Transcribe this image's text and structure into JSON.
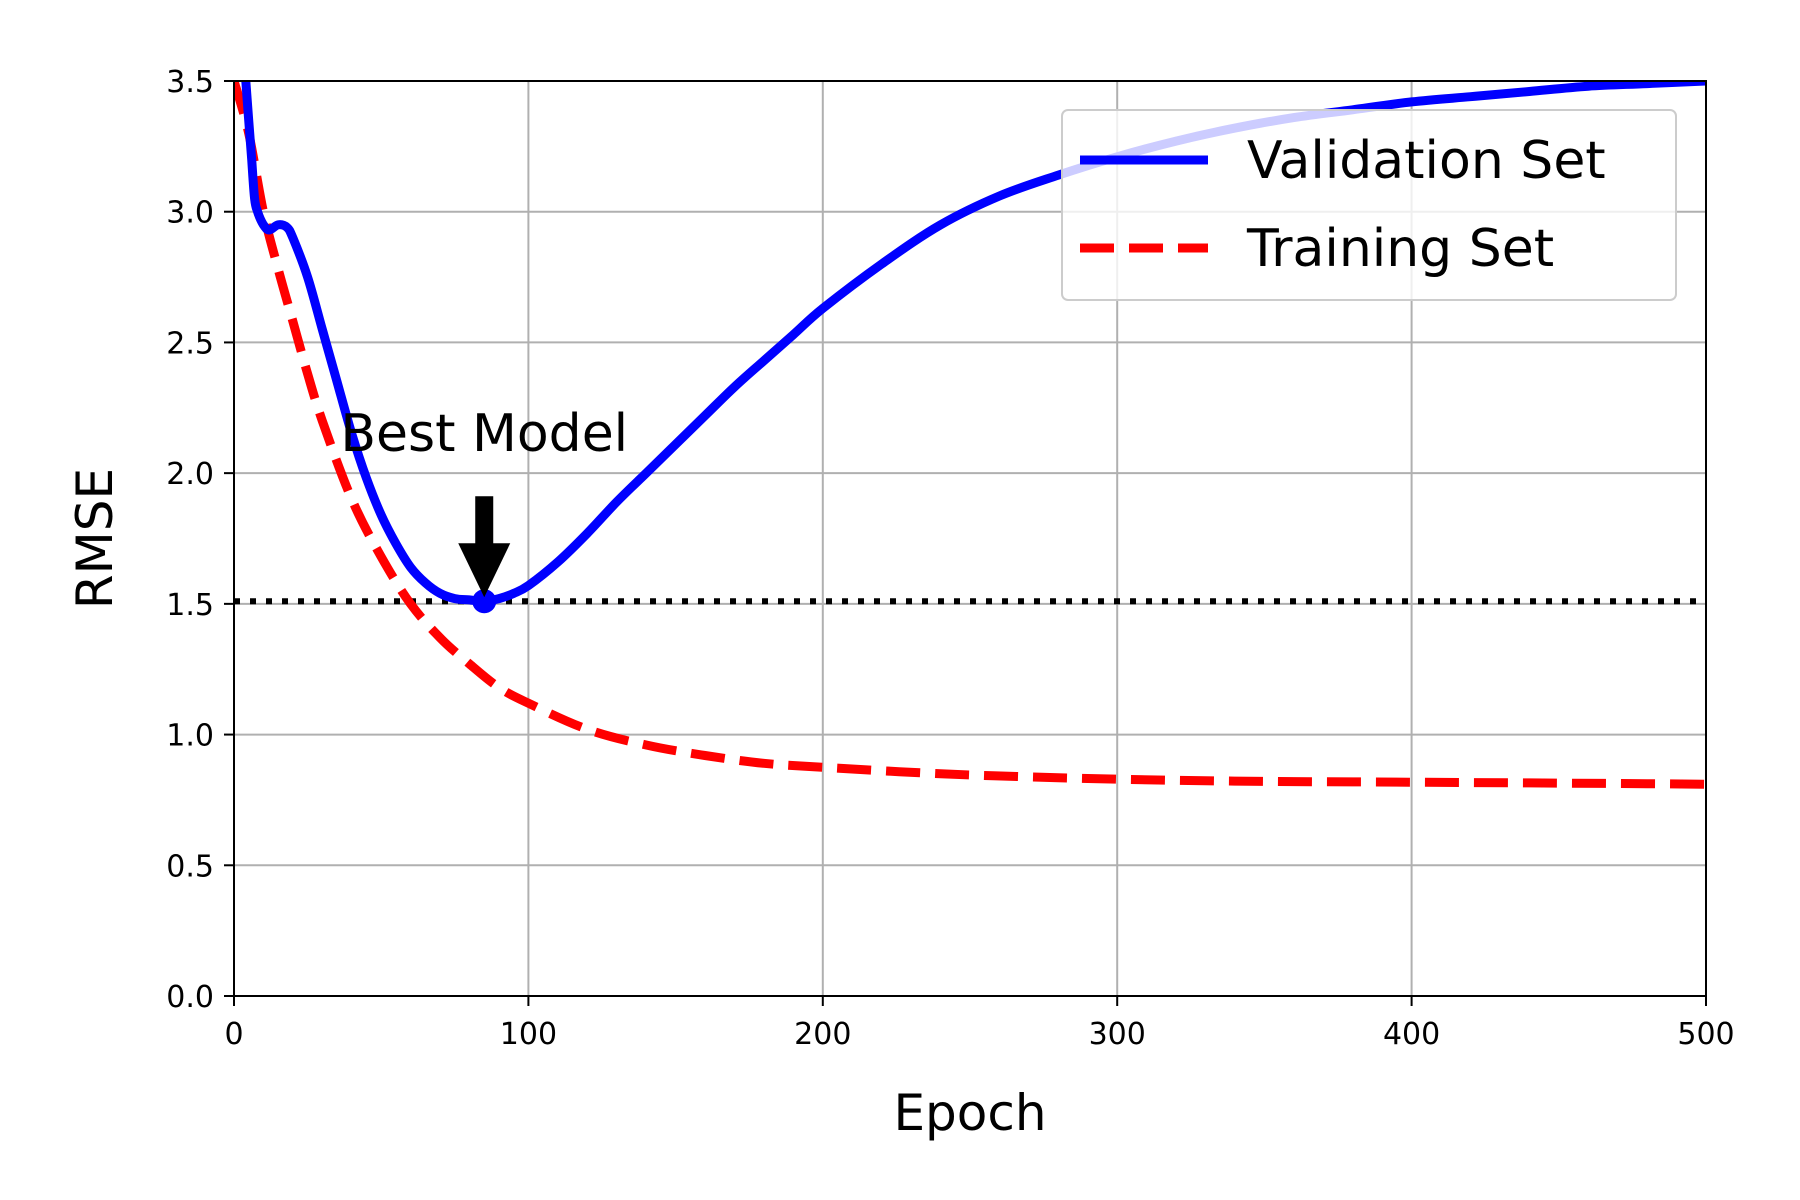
{
  "chart_data": {
    "type": "line",
    "xlabel": "Epoch",
    "ylabel": "RMSE",
    "xlim": [
      0,
      500
    ],
    "ylim": [
      0,
      3.5
    ],
    "xticks": [
      "0",
      "100",
      "200",
      "300",
      "400",
      "500"
    ],
    "yticks": [
      "0.0",
      "0.5",
      "1.0",
      "1.5",
      "2.0",
      "2.5",
      "3.0",
      "3.5"
    ],
    "grid": true,
    "legend_position": "top-right",
    "series": [
      {
        "name": "Validation Set",
        "style": "solid",
        "color": "#0000ff",
        "x": [
          4,
          5,
          6,
          7,
          8,
          10,
          12,
          15,
          18,
          20,
          25,
          30,
          35,
          40,
          45,
          50,
          55,
          60,
          65,
          70,
          75,
          80,
          85,
          90,
          95,
          100,
          110,
          120,
          130,
          140,
          150,
          160,
          170,
          180,
          190,
          200,
          220,
          240,
          260,
          280,
          300,
          320,
          340,
          360,
          380,
          400,
          420,
          440,
          460,
          480,
          500
        ],
        "y": [
          3.5,
          3.35,
          3.2,
          3.05,
          3.0,
          2.95,
          2.93,
          2.95,
          2.94,
          2.9,
          2.75,
          2.55,
          2.35,
          2.15,
          1.98,
          1.84,
          1.73,
          1.64,
          1.58,
          1.54,
          1.52,
          1.515,
          1.51,
          1.52,
          1.54,
          1.57,
          1.66,
          1.77,
          1.89,
          2.0,
          2.11,
          2.22,
          2.33,
          2.43,
          2.53,
          2.63,
          2.8,
          2.95,
          3.06,
          3.14,
          3.21,
          3.27,
          3.32,
          3.36,
          3.39,
          3.42,
          3.44,
          3.46,
          3.48,
          3.49,
          3.5
        ]
      },
      {
        "name": "Training Set",
        "style": "dashed",
        "color": "#ff0000",
        "x": [
          0,
          5,
          10,
          15,
          20,
          25,
          30,
          40,
          50,
          60,
          70,
          80,
          90,
          100,
          120,
          140,
          160,
          180,
          200,
          240,
          280,
          320,
          360,
          400,
          440,
          480,
          500
        ],
        "y": [
          3.5,
          3.3,
          3.0,
          2.78,
          2.58,
          2.38,
          2.2,
          1.9,
          1.68,
          1.5,
          1.37,
          1.27,
          1.18,
          1.12,
          1.02,
          0.96,
          0.92,
          0.89,
          0.875,
          0.85,
          0.835,
          0.825,
          0.82,
          0.818,
          0.815,
          0.812,
          0.81
        ]
      }
    ],
    "reference_line": {
      "y": 1.51,
      "style": "dotted",
      "color": "#000000"
    },
    "best_point": {
      "x": 85,
      "y": 1.51,
      "color": "#0000ff"
    },
    "annotation": {
      "text": "Best Model",
      "x": 85,
      "y": 1.51,
      "arrow_color": "#000000"
    }
  }
}
